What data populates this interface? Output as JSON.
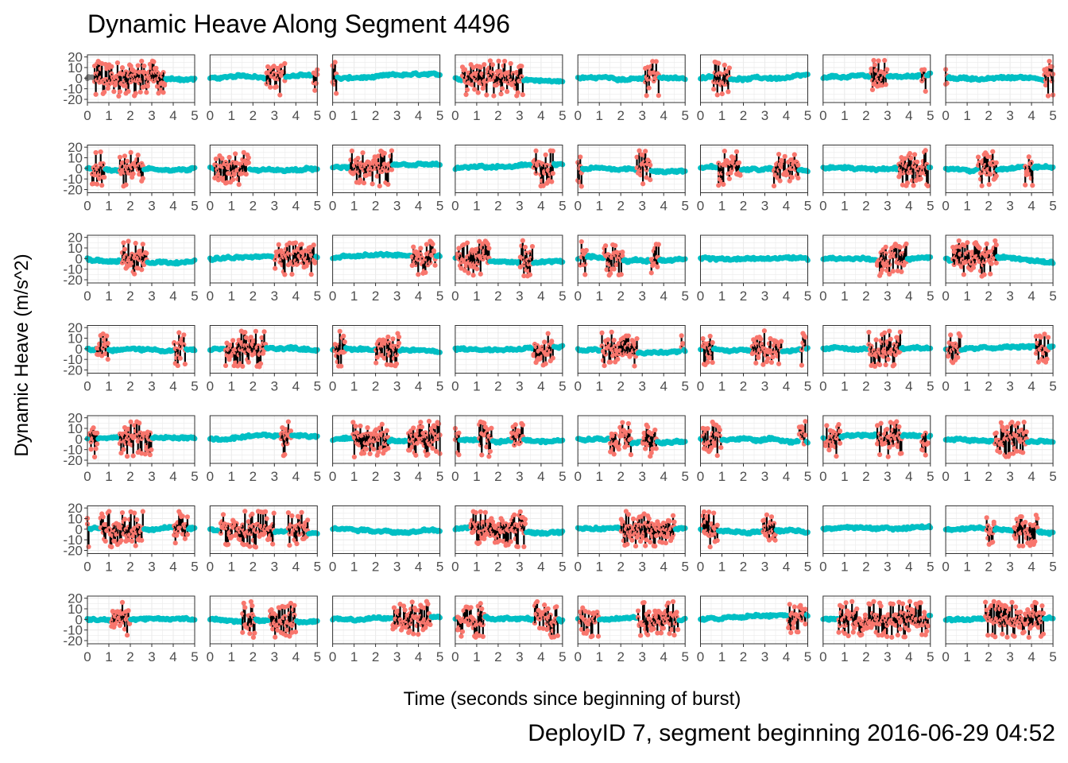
{
  "chart_data": {
    "type": "scatter",
    "title": "Dynamic Heave Along Segment 4496",
    "caption": "DeployID 7, segment beginning 2016-06-29 04:52",
    "xlabel": "Time (seconds since beginning of burst)",
    "ylabel": "Dynamic Heave (m/s^2)",
    "facet_layout": {
      "rows": 7,
      "cols": 8
    },
    "xlim": [
      0,
      5
    ],
    "ylim": [
      -23,
      22
    ],
    "x_ticks": [
      0,
      1,
      2,
      3,
      4,
      5
    ],
    "y_ticks": [
      -20,
      -10,
      0,
      10,
      20
    ],
    "grid": true,
    "colors": {
      "active": "#F8766D",
      "inactive": "#00BFC4",
      "missing": "#7F7F7F",
      "lunge_segment": "#000000",
      "panel_border": "#333333",
      "grid": "#EBEBEB"
    },
    "panels": [
      {
        "active": [
          [
            0.3,
            3.6
          ]
        ],
        "missing_start": 0.3
      },
      {
        "active": [
          [
            2.6,
            3.5
          ],
          [
            4.8,
            5.0
          ]
        ]
      },
      {
        "active": [
          [
            0.0,
            0.2
          ]
        ]
      },
      {
        "active": [
          [
            0.3,
            3.2
          ]
        ]
      },
      {
        "active": [
          [
            3.1,
            3.8
          ]
        ]
      },
      {
        "active": [
          [
            0.6,
            1.4
          ]
        ]
      },
      {
        "active": [
          [
            2.2,
            3.0
          ],
          [
            4.6,
            4.8
          ]
        ]
      },
      {
        "active": [
          [
            0.0,
            0.1
          ],
          [
            4.6,
            5.0
          ]
        ]
      },
      {
        "active": [
          [
            0.2,
            0.8
          ],
          [
            1.5,
            2.6
          ]
        ]
      },
      {
        "active": [
          [
            0.2,
            1.8
          ]
        ]
      },
      {
        "active": [
          [
            0.8,
            2.8
          ]
        ]
      },
      {
        "active": [
          [
            3.6,
            4.6
          ]
        ]
      },
      {
        "active": [
          [
            0.0,
            0.2
          ],
          [
            2.7,
            3.4
          ]
        ]
      },
      {
        "active": [
          [
            0.8,
            1.9
          ],
          [
            3.4,
            4.6
          ]
        ]
      },
      {
        "active": [
          [
            3.5,
            4.9
          ]
        ]
      },
      {
        "active": [
          [
            1.5,
            2.4
          ],
          [
            3.7,
            4.1
          ]
        ]
      },
      {
        "active": [
          [
            1.6,
            2.8
          ]
        ]
      },
      {
        "active": [
          [
            3.0,
            4.9
          ]
        ]
      },
      {
        "active": [
          [
            3.7,
            4.8
          ]
        ]
      },
      {
        "active": [
          [
            0.1,
            1.6
          ],
          [
            3.0,
            3.6
          ]
        ]
      },
      {
        "active": [
          [
            0.1,
            0.4
          ],
          [
            1.2,
            2.1
          ],
          [
            3.4,
            3.8
          ]
        ]
      },
      {
        "active": []
      },
      {
        "active": [
          [
            2.5,
            3.9
          ]
        ]
      },
      {
        "active": [
          [
            0.3,
            2.4
          ]
        ]
      },
      {
        "active": [
          [
            0.4,
            1.0
          ],
          [
            4.0,
            4.6
          ]
        ]
      },
      {
        "active": [
          [
            0.7,
            2.6
          ]
        ]
      },
      {
        "active": [
          [
            0.1,
            0.6
          ],
          [
            2.0,
            3.1
          ]
        ]
      },
      {
        "active": [
          [
            3.6,
            4.6
          ]
        ]
      },
      {
        "active": [
          [
            1.1,
            2.8
          ],
          [
            4.8,
            4.9
          ]
        ]
      },
      {
        "active": [
          [
            0.1,
            0.6
          ],
          [
            2.4,
            3.8
          ],
          [
            4.7,
            4.9
          ]
        ]
      },
      {
        "active": [
          [
            2.1,
            3.6
          ]
        ]
      },
      {
        "active": [
          [
            0.1,
            0.7
          ],
          [
            4.2,
            4.8
          ]
        ]
      },
      {
        "active": [
          [
            0.1,
            0.5
          ],
          [
            1.5,
            3.0
          ]
        ]
      },
      {
        "active": [
          [
            3.3,
            3.8
          ]
        ]
      },
      {
        "active": [
          [
            0.9,
            2.6
          ],
          [
            3.5,
            5.0
          ]
        ]
      },
      {
        "active": [
          [
            0.0,
            0.2
          ],
          [
            1.1,
            1.7
          ],
          [
            2.6,
            3.2
          ]
        ]
      },
      {
        "active": [
          [
            1.5,
            2.5
          ],
          [
            3.0,
            3.7
          ]
        ]
      },
      {
        "active": [
          [
            0.1,
            1.0
          ],
          [
            4.6,
            4.9
          ]
        ]
      },
      {
        "active": [
          [
            0.1,
            0.8
          ],
          [
            2.5,
            3.7
          ],
          [
            4.6,
            4.9
          ]
        ]
      },
      {
        "active": [
          [
            2.3,
            3.8
          ]
        ]
      },
      {
        "active": [
          [
            0.0,
            0.1
          ],
          [
            0.6,
            2.6
          ],
          [
            4.0,
            4.7
          ]
        ]
      },
      {
        "active": [
          [
            0.5,
            3.0
          ],
          [
            3.6,
            4.6
          ]
        ]
      },
      {
        "active": []
      },
      {
        "active": [
          [
            0.7,
            3.3
          ]
        ]
      },
      {
        "active": [
          [
            2.0,
            4.5
          ]
        ]
      },
      {
        "active": [
          [
            0.1,
            0.8
          ],
          [
            2.9,
            3.5
          ]
        ]
      },
      {
        "active": []
      },
      {
        "active": [
          [
            1.9,
            2.3
          ],
          [
            3.2,
            4.3
          ]
        ]
      },
      {
        "active": [
          [
            1.1,
            2.0
          ]
        ]
      },
      {
        "active": [
          [
            1.5,
            2.1
          ],
          [
            2.8,
            4.0
          ]
        ]
      },
      {
        "active": [
          [
            2.8,
            4.6
          ]
        ]
      },
      {
        "active": [
          [
            0.1,
            1.4
          ],
          [
            3.7,
            4.8
          ]
        ]
      },
      {
        "active": [
          [
            0.1,
            1.0
          ],
          [
            2.8,
            4.7
          ]
        ]
      },
      {
        "active": [
          [
            4.1,
            4.9
          ]
        ]
      },
      {
        "active": [
          [
            0.7,
            4.9
          ]
        ]
      },
      {
        "active": [
          [
            1.8,
            4.6
          ]
        ]
      }
    ]
  }
}
